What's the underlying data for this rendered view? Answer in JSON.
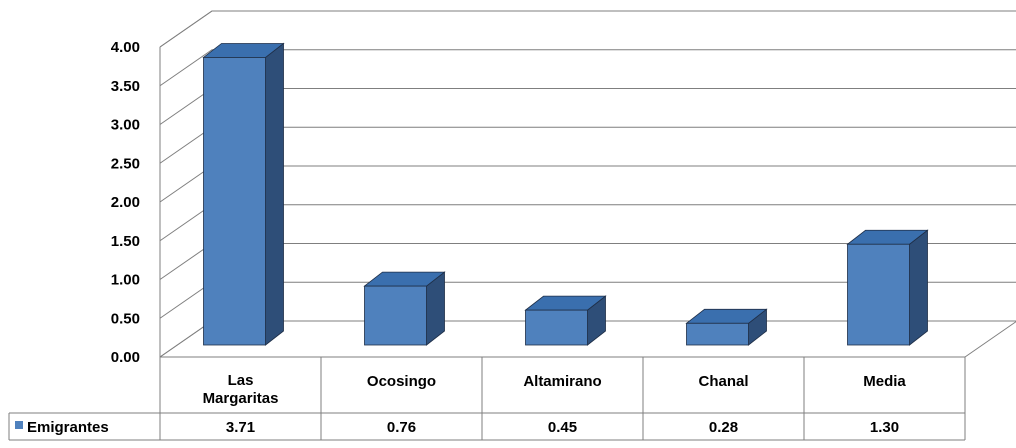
{
  "chart_data": {
    "type": "bar",
    "categories": [
      "Las Margaritas",
      "Ocosingo",
      "Altamirano",
      "Chanal",
      "Media"
    ],
    "series": [
      {
        "name": "Emigrantes",
        "values": [
          3.71,
          0.76,
          0.45,
          0.28,
          1.3
        ],
        "labels": [
          "3.71",
          "0.76",
          "0.45",
          "0.28",
          "1.30"
        ]
      }
    ],
    "y_ticks": [
      "0.00",
      "0.50",
      "1.00",
      "1.50",
      "2.00",
      "2.50",
      "3.00",
      "3.50",
      "4.00"
    ],
    "ylim": [
      0,
      4
    ],
    "grid": true,
    "data_table": true,
    "legend_position": "left-of-table",
    "colors": {
      "bar_front": "#4F81BD",
      "bar_top": "#3A6FAE",
      "bar_side": "#2E4E78",
      "grid": "#7F7F7F"
    }
  }
}
